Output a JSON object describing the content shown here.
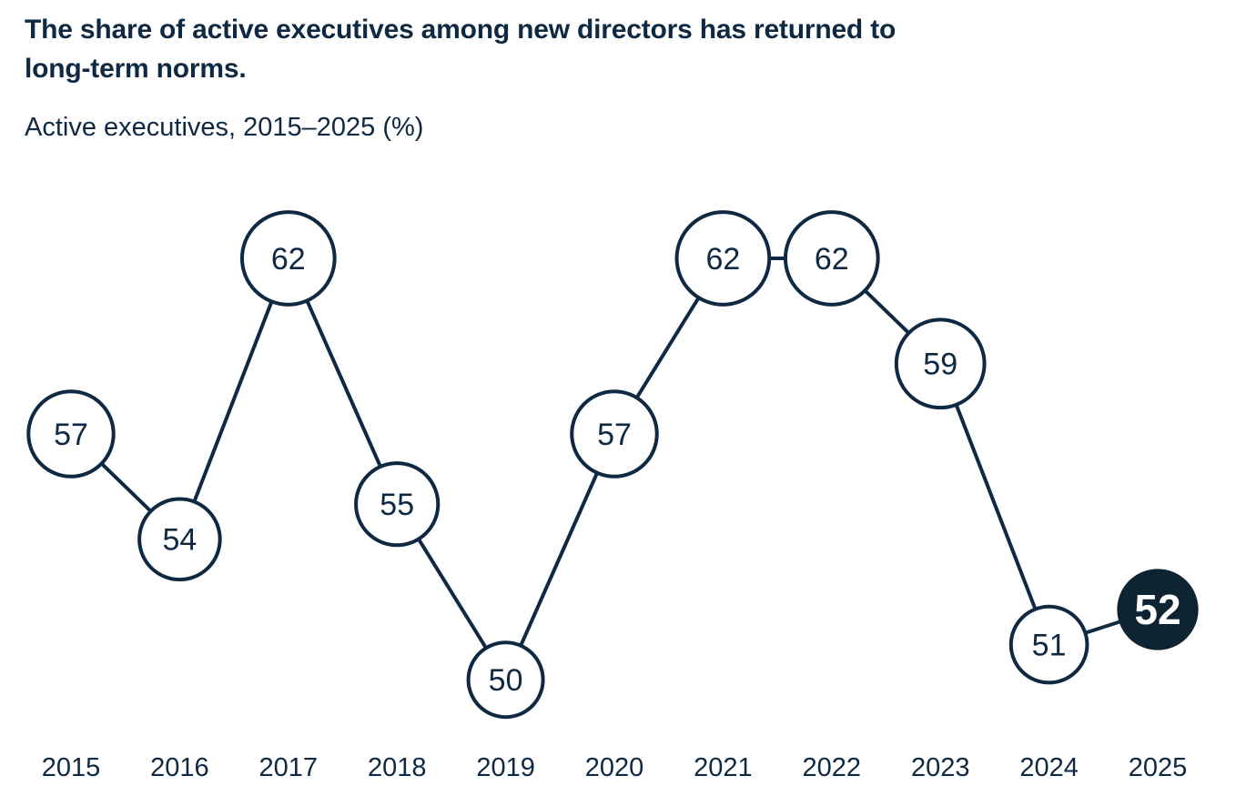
{
  "header": {
    "title_line1": "The share of active executives among new directors has returned to",
    "title_line2": "long-term norms.",
    "subtitle": "Active executives, 2015–2025 (%)"
  },
  "chart_data": {
    "type": "line",
    "title": "The share of active executives among new directors has returned to long-term norms.",
    "subtitle": "Active executives, 2015–2025 (%)",
    "categories": [
      "2015",
      "2016",
      "2017",
      "2018",
      "2019",
      "2020",
      "2021",
      "2022",
      "2023",
      "2024",
      "2025"
    ],
    "series": [
      {
        "name": "Active executives (%)",
        "values": [
          57,
          54,
          62,
          55,
          50,
          57,
          62,
          62,
          59,
          51,
          52
        ]
      }
    ],
    "xlabel": "",
    "ylabel": "Active executives (%)",
    "ylim": [
      48,
      64
    ],
    "grid": false,
    "legend": false,
    "marker_style": "circle markers containing data labels; marker radius scales with value",
    "highlight": {
      "category": "2025",
      "value": 52,
      "note": "final data point shown as filled dark circle with white bold label"
    },
    "colors": {
      "ink": "#0f2942",
      "line": "#0f2942",
      "marker_fill": "#ffffff",
      "marker_stroke": "#0f2942",
      "marker_text": "#0f2942",
      "highlight_fill": "#0e2433",
      "highlight_text": "#ffffff",
      "background": "#ffffff"
    }
  }
}
